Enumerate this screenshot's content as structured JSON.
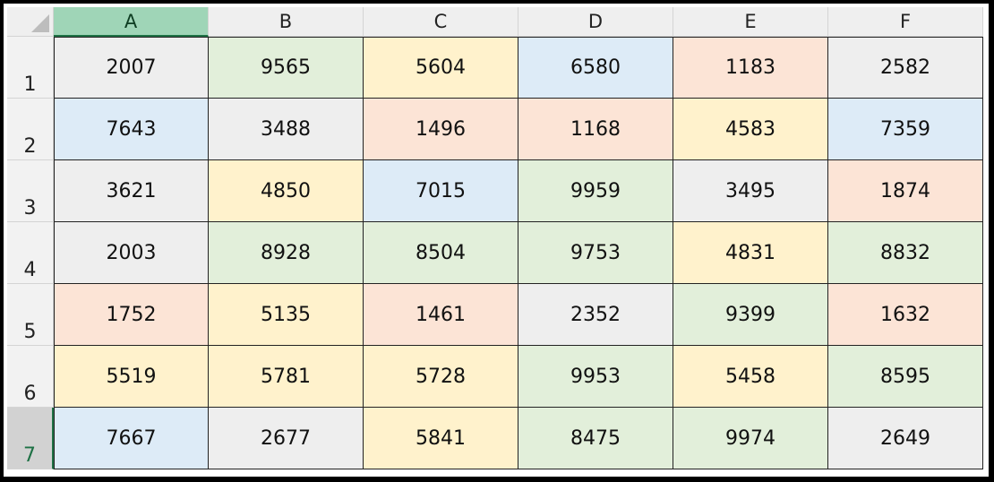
{
  "columns": [
    "A",
    "B",
    "C",
    "D",
    "E",
    "F"
  ],
  "selected_column": "A",
  "selected_row": "7",
  "colors": {
    "gray": "#eeeeee",
    "green": "#e2efda",
    "yellow": "#fff2cc",
    "blue": "#ddebf7",
    "salmon": "#fce4d6",
    "selection_green": "#1e7145"
  },
  "rows": [
    {
      "label": "1",
      "cells": [
        {
          "value": "2007",
          "fill": "gray"
        },
        {
          "value": "9565",
          "fill": "green"
        },
        {
          "value": "5604",
          "fill": "yellow"
        },
        {
          "value": "6580",
          "fill": "blue"
        },
        {
          "value": "1183",
          "fill": "salmon"
        },
        {
          "value": "2582",
          "fill": "gray"
        }
      ]
    },
    {
      "label": "2",
      "cells": [
        {
          "value": "7643",
          "fill": "blue"
        },
        {
          "value": "3488",
          "fill": "gray"
        },
        {
          "value": "1496",
          "fill": "salmon"
        },
        {
          "value": "1168",
          "fill": "salmon"
        },
        {
          "value": "4583",
          "fill": "yellow"
        },
        {
          "value": "7359",
          "fill": "blue"
        }
      ]
    },
    {
      "label": "3",
      "cells": [
        {
          "value": "3621",
          "fill": "gray"
        },
        {
          "value": "4850",
          "fill": "yellow"
        },
        {
          "value": "7015",
          "fill": "blue"
        },
        {
          "value": "9959",
          "fill": "green"
        },
        {
          "value": "3495",
          "fill": "gray"
        },
        {
          "value": "1874",
          "fill": "salmon"
        }
      ]
    },
    {
      "label": "4",
      "cells": [
        {
          "value": "2003",
          "fill": "gray"
        },
        {
          "value": "8928",
          "fill": "green"
        },
        {
          "value": "8504",
          "fill": "green"
        },
        {
          "value": "9753",
          "fill": "green"
        },
        {
          "value": "4831",
          "fill": "yellow"
        },
        {
          "value": "8832",
          "fill": "green"
        }
      ]
    },
    {
      "label": "5",
      "cells": [
        {
          "value": "1752",
          "fill": "salmon"
        },
        {
          "value": "5135",
          "fill": "yellow"
        },
        {
          "value": "1461",
          "fill": "salmon"
        },
        {
          "value": "2352",
          "fill": "gray"
        },
        {
          "value": "9399",
          "fill": "green"
        },
        {
          "value": "1632",
          "fill": "salmon"
        }
      ]
    },
    {
      "label": "6",
      "cells": [
        {
          "value": "5519",
          "fill": "yellow"
        },
        {
          "value": "5781",
          "fill": "yellow"
        },
        {
          "value": "5728",
          "fill": "yellow"
        },
        {
          "value": "9953",
          "fill": "green"
        },
        {
          "value": "5458",
          "fill": "yellow"
        },
        {
          "value": "8595",
          "fill": "green"
        }
      ]
    },
    {
      "label": "7",
      "cells": [
        {
          "value": "7667",
          "fill": "blue"
        },
        {
          "value": "2677",
          "fill": "gray"
        },
        {
          "value": "5841",
          "fill": "yellow"
        },
        {
          "value": "8475",
          "fill": "green"
        },
        {
          "value": "9974",
          "fill": "green"
        },
        {
          "value": "2649",
          "fill": "gray"
        }
      ]
    }
  ]
}
